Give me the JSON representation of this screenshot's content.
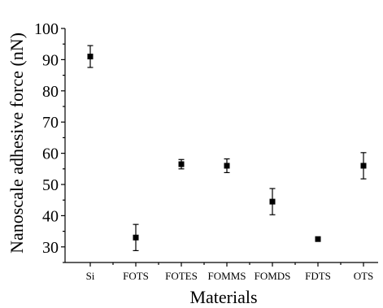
{
  "chart_data": {
    "type": "scatter",
    "xlabel": "Materials",
    "ylabel": "Nanoscale adhesive force (nN)",
    "ylim": [
      25,
      100
    ],
    "y_ticks": [
      30,
      40,
      50,
      60,
      70,
      80,
      90,
      100
    ],
    "categories": [
      "Si",
      "FOTS",
      "FOTES",
      "FOMMS",
      "FOMDS",
      "FDTS",
      "OTS"
    ],
    "values": [
      91,
      33,
      56.5,
      56,
      44.5,
      32.5,
      56
    ],
    "errors": [
      3.5,
      4.2,
      1.5,
      2.2,
      4.2,
      0,
      4.2
    ],
    "grid": false,
    "marker": "square",
    "color": "#000000"
  }
}
